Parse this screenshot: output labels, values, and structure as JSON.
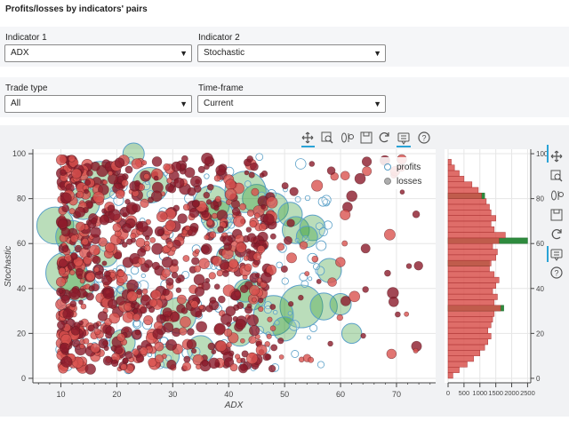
{
  "header": {
    "title": "Profits/losses by indicators' pairs"
  },
  "controls": {
    "indicator1": {
      "label": "Indicator 1",
      "value": "ADX"
    },
    "indicator2": {
      "label": "Indicator 2",
      "value": "Stochastic"
    },
    "trade_type": {
      "label": "Trade type",
      "value": "All"
    },
    "timeframe": {
      "label": "Time-frame",
      "value": "Current"
    }
  },
  "toolbar": {
    "main_tools": [
      "pan-icon",
      "box-zoom-icon",
      "wheel-zoom-icon",
      "save-icon",
      "reset-icon",
      "hover-icon",
      "help-icon"
    ],
    "side_tools": [
      "pan-icon",
      "box-zoom-icon",
      "wheel-zoom-icon",
      "save-icon",
      "reset-icon",
      "hover-icon",
      "help-icon"
    ]
  },
  "colors": {
    "profits": "#3a9e3a",
    "profits_edge": "#5aa0c8",
    "losses": "#8b1a2a",
    "losses_light": "#d9534f",
    "hist_loss": "#d9534f",
    "hist_profit": "#2e8b3e"
  },
  "chart_data": [
    {
      "type": "scatter",
      "title": "",
      "xlabel": "ADX",
      "ylabel": "Stochastic",
      "xlim": [
        5,
        77
      ],
      "ylim": [
        -2,
        102
      ],
      "xticks": [
        "10",
        "20",
        "30",
        "40",
        "50",
        "60",
        "70"
      ],
      "yticks": [
        "0",
        "20",
        "40",
        "60",
        "80",
        "100"
      ],
      "legend": {
        "position": "top-right",
        "entries": [
          "profits",
          "losses"
        ]
      },
      "series": [
        {
          "name": "profits",
          "points": [
            [
              17,
              88,
              2.2
            ],
            [
              26,
              86,
              2.0
            ],
            [
              14,
              78,
              1.8
            ],
            [
              37,
              78,
              2.0
            ],
            [
              45,
              80,
              1.5
            ],
            [
              43,
              83,
              2.4
            ],
            [
              48,
              76,
              1.6
            ],
            [
              51,
              73,
              1.2
            ],
            [
              38,
              72,
              1.8
            ],
            [
              52,
              66,
              1.4
            ],
            [
              55,
              67,
              1.3
            ],
            [
              9,
              68,
              2.1
            ],
            [
              12,
              63,
              1.8
            ],
            [
              11,
              47,
              2.4
            ],
            [
              13,
              42,
              1.9
            ],
            [
              22,
              36,
              1.5
            ],
            [
              44,
              37,
              1.6
            ],
            [
              53,
              32,
              2.5
            ],
            [
              57,
              32,
              1.4
            ],
            [
              60,
              33,
              1.0
            ],
            [
              48,
              28,
              2.3
            ],
            [
              50,
              22,
              1.2
            ],
            [
              42,
              20,
              1.3
            ],
            [
              35,
              13,
              1.4
            ],
            [
              29,
              10,
              1.2
            ],
            [
              21,
              16,
              1.3
            ],
            [
              31,
              28,
              2.0
            ],
            [
              18,
              55,
              1.2
            ],
            [
              40,
              54,
              1.2
            ],
            [
              58,
              48,
              1.2
            ],
            [
              62,
              20,
              0.9
            ],
            [
              23,
              100,
              1.0
            ],
            [
              43,
              39,
              1.1
            ],
            [
              54,
              63,
              1.0
            ]
          ]
        },
        {
          "name": "losses",
          "points": "dense cluster between ADX 10-45, Stochastic 5-98; sparser to ADX 75"
        }
      ]
    },
    {
      "type": "bar",
      "orientation": "horizontal",
      "title": "",
      "xlabel": "",
      "xticks": [
        "0",
        "500",
        "1000",
        "1500",
        "2000",
        "2500"
      ],
      "yticks": [
        "0",
        "20",
        "40",
        "60",
        "80",
        "100"
      ],
      "bins": [
        0,
        2.5,
        5,
        7.5,
        10,
        12.5,
        15,
        17.5,
        20,
        22.5,
        25,
        27.5,
        30,
        32.5,
        35,
        37.5,
        40,
        42.5,
        45,
        47.5,
        50,
        52.5,
        55,
        57.5,
        60,
        62.5,
        65,
        67.5,
        70,
        72.5,
        75,
        77.5,
        80,
        82.5,
        85,
        87.5,
        90,
        92.5,
        95
      ],
      "series": [
        {
          "name": "losses",
          "values": [
            150,
            350,
            600,
            800,
            1000,
            1150,
            1250,
            1350,
            1250,
            1350,
            1400,
            1450,
            1650,
            1450,
            1550,
            1400,
            1500,
            1600,
            1450,
            1300,
            1350,
            1500,
            1550,
            1400,
            1600,
            1800,
            1450,
            1350,
            1500,
            1350,
            1300,
            1200,
            1050,
            950,
            750,
            500,
            350,
            200,
            100
          ]
        },
        {
          "name": "profits",
          "values": [
            0,
            0,
            0,
            0,
            0,
            0,
            0,
            0,
            0,
            0,
            0,
            0,
            1750,
            0,
            0,
            0,
            0,
            0,
            0,
            0,
            1300,
            0,
            0,
            0,
            2500,
            0,
            0,
            0,
            0,
            0,
            0,
            0,
            1150,
            0,
            0,
            0,
            0,
            0,
            0
          ]
        }
      ]
    }
  ]
}
